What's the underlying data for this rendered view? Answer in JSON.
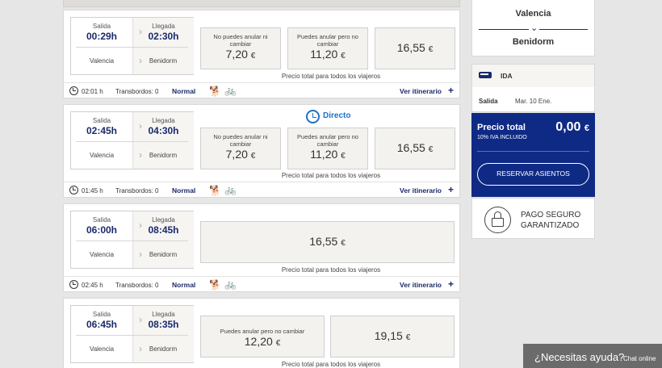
{
  "cards": [
    {
      "salida_label": "Salida",
      "llegada_label": "Llegada",
      "salida_time": "00:29h",
      "llegada_time": "02:30h",
      "origin": "Valencia",
      "destination": "Benidorm",
      "fares": [
        {
          "note": "No puedes anular ni cambiar",
          "price": "7,20",
          "currency": "€"
        },
        {
          "note": "Puedes anular pero no cambiar",
          "price": "11,20",
          "currency": "€"
        },
        {
          "note": "",
          "price": "16,55",
          "currency": "€"
        }
      ],
      "total_note": "Precio total para todos los viajeros",
      "duration": "02:01 h",
      "transfers": "Transbordos: 0",
      "class": "Normal",
      "itinerary": "Ver itinerario"
    },
    {
      "badge": "Directo",
      "salida_label": "Salida",
      "llegada_label": "Llegada",
      "salida_time": "02:45h",
      "llegada_time": "04:30h",
      "origin": "Valencia",
      "destination": "Benidorm",
      "fares": [
        {
          "note": "No puedes anular ni cambiar",
          "price": "7,20",
          "currency": "€"
        },
        {
          "note": "Puedes anular pero no cambiar",
          "price": "11,20",
          "currency": "€"
        },
        {
          "note": "",
          "price": "16,55",
          "currency": "€"
        }
      ],
      "total_note": "Precio total para todos los viajeros",
      "duration": "01:45 h",
      "transfers": "Transbordos: 0",
      "class": "Normal",
      "itinerary": "Ver itinerario"
    },
    {
      "salida_label": "Salida",
      "llegada_label": "Llegada",
      "salida_time": "06:00h",
      "llegada_time": "08:45h",
      "origin": "Valencia",
      "destination": "Benidorm",
      "fares": [
        {
          "note": "",
          "price": "16,55",
          "currency": "€"
        }
      ],
      "total_note": "Precio total para todos los viajeros",
      "duration": "02:45 h",
      "transfers": "Transbordos: 0",
      "class": "Normal",
      "itinerary": "Ver itinerario"
    },
    {
      "salida_label": "Salida",
      "llegada_label": "Llegada",
      "salida_time": "06:45h",
      "llegada_time": "08:35h",
      "origin": "Valencia",
      "destination": "Benidorm",
      "fares": [
        {
          "note": "Puedes anular pero no cambiar",
          "price": "12,20",
          "currency": "€"
        },
        {
          "note": "",
          "price": "19,15",
          "currency": "€"
        }
      ],
      "total_note": "Precio total para todos los viajeros"
    }
  ],
  "route": {
    "from": "Valencia",
    "to": "Benidorm"
  },
  "summary": {
    "direction": "IDA",
    "salida_label": "Salida",
    "date": "Mar. 10 Ene."
  },
  "price_panel": {
    "label": "Precio total",
    "iva": "10% IVA INCLUIDO",
    "value": "0,00",
    "currency": "€",
    "button": "RESERVAR ASIENTOS"
  },
  "secure": {
    "line1": "PAGO SEGURO",
    "line2": "GARANTIZADO"
  },
  "help": {
    "text": "¿Necesitas ayuda?",
    "chat": "Chat online"
  },
  "colors": {
    "navy": "#1b2a6b",
    "panel_blue": "#0f2a85",
    "direct_blue": "#1f72c4"
  }
}
